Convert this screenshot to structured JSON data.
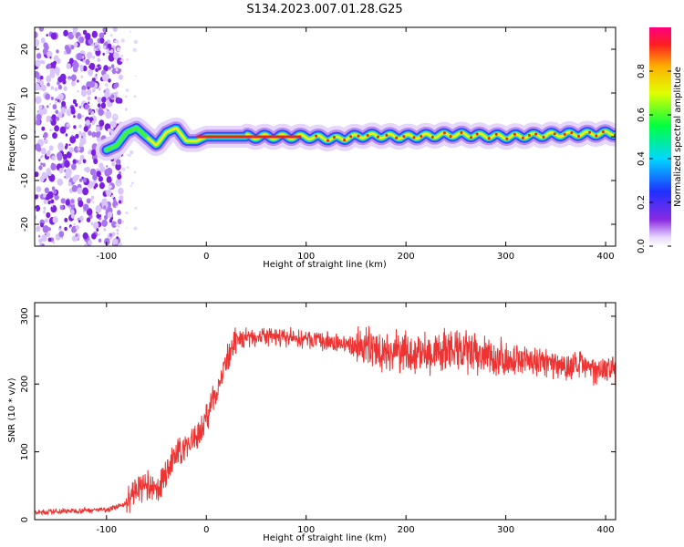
{
  "title": "S134.2023.007.01.28.G25",
  "chart_data": [
    {
      "type": "heatmap",
      "xlabel": "Height of straight line (km)",
      "ylabel": "Frequency (Hz)",
      "xlim": [
        -172,
        410
      ],
      "ylim": [
        -25,
        25
      ],
      "x_ticks": [
        -100,
        0,
        100,
        200,
        300,
        400
      ],
      "y_ticks": [
        -20,
        -10,
        0,
        10,
        20
      ],
      "colorbar": {
        "label": "Normalized spectral amplitude",
        "range": [
          0,
          1
        ],
        "ticks": [
          0.0,
          0.2,
          0.4,
          0.6,
          0.8
        ]
      },
      "ridge": {
        "x": [
          -100,
          -90,
          -80,
          -70,
          -60,
          -50,
          -40,
          -30,
          -20,
          -10,
          0,
          50,
          100,
          130,
          160,
          200,
          250,
          300,
          350,
          410
        ],
        "frequency": [
          -3,
          -2,
          1,
          2,
          0,
          -2,
          1,
          2,
          -1,
          -1,
          0,
          0,
          0,
          -0.5,
          0.3,
          0,
          0.5,
          0,
          0.5,
          0.8
        ]
      }
    },
    {
      "type": "line",
      "xlabel": "Height of straight line (km)",
      "ylabel": "SNR (10 * v/v)",
      "xlim": [
        -172,
        410
      ],
      "ylim": [
        0,
        320
      ],
      "x_ticks": [
        -100,
        0,
        100,
        200,
        300,
        400
      ],
      "y_ticks": [
        0,
        100,
        200,
        300
      ],
      "series": [
        {
          "color": "#ee3333",
          "x": [
            -172,
            -150,
            -120,
            -100,
            -90,
            -80,
            -70,
            -60,
            -50,
            -40,
            -30,
            -20,
            -10,
            0,
            10,
            20,
            30,
            40,
            60,
            80,
            100,
            120,
            140,
            160,
            180,
            200,
            220,
            240,
            260,
            280,
            300,
            320,
            340,
            360,
            380,
            410
          ],
          "values": [
            10,
            12,
            14,
            15,
            18,
            25,
            45,
            50,
            40,
            70,
            95,
            110,
            120,
            150,
            190,
            230,
            262,
            270,
            270,
            268,
            266,
            262,
            258,
            255,
            248,
            245,
            245,
            248,
            245,
            240,
            238,
            235,
            232,
            228,
            225,
            222
          ]
        }
      ]
    }
  ]
}
